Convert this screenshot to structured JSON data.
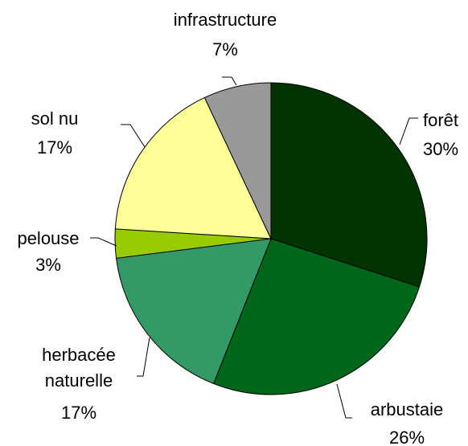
{
  "chart_data": {
    "type": "pie",
    "categories": [
      "forêt",
      "arbustaie",
      "herbacée naturelle",
      "pelouse",
      "sol nu",
      "infrastructure"
    ],
    "values": [
      30,
      26,
      17,
      3,
      17,
      7
    ],
    "value_labels": [
      "30%",
      "26%",
      "17%",
      "3%",
      "17%",
      "7%"
    ],
    "colors": [
      "#003300",
      "#006619",
      "#339966",
      "#99cc00",
      "#ffff99",
      "#999999"
    ]
  }
}
